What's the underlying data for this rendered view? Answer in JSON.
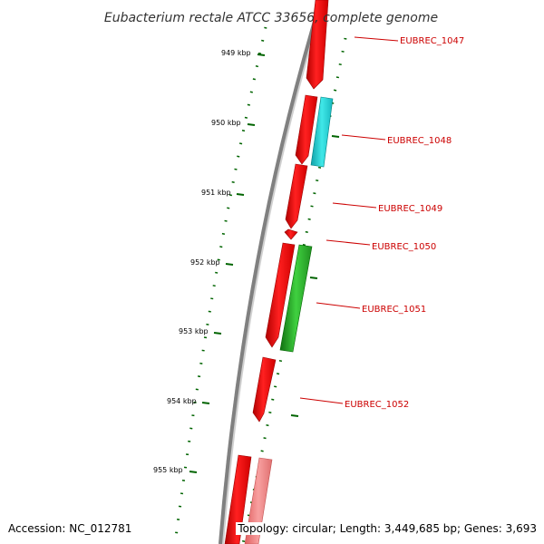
{
  "title": "Eubacterium rectale ATCC 33656, complete genome",
  "footer": {
    "accession": "Accession: NC_012781",
    "topology": "Topology: circular; Length: 3,449,685 bp; Genes: 3,693"
  },
  "colors": {
    "backbone": "#808080",
    "gene_forward": "#ff0000",
    "gene_light": "#f08080",
    "feature_cyan": "#20d0d0",
    "feature_green": "#2ebd2e",
    "tick": "#006400",
    "label": "#cc0000"
  },
  "ticks": [
    "949 kbp",
    "950 kbp",
    "951 kbp",
    "952 kbp",
    "953 kbp",
    "954 kbp",
    "955 kbp"
  ],
  "gene_labels": [
    "EUBREC_1047",
    "EUBREC_1048",
    "EUBREC_1049",
    "EUBREC_1050",
    "EUBREC_1051",
    "EUBREC_1052"
  ]
}
